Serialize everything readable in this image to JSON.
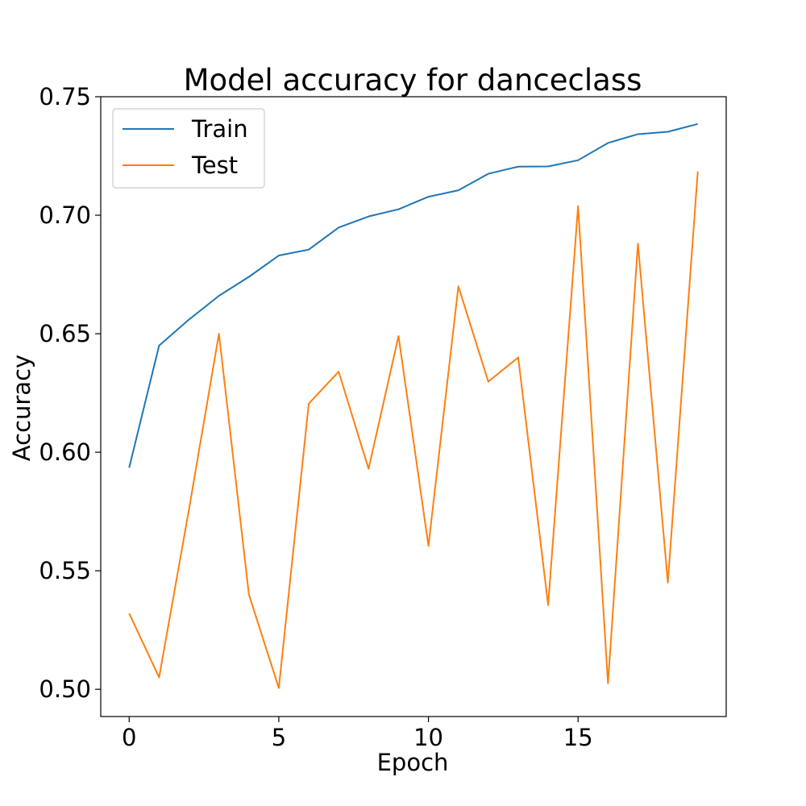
{
  "chart_data": {
    "type": "line",
    "title": "Model accuracy for danceclass",
    "xlabel": "Epoch",
    "ylabel": "Accuracy",
    "x": [
      0,
      1,
      2,
      3,
      4,
      5,
      6,
      7,
      8,
      9,
      10,
      11,
      12,
      13,
      14,
      15,
      16,
      17,
      18,
      19
    ],
    "xlim": [
      -0.95,
      19.95
    ],
    "ylim": [
      0.4885,
      0.75
    ],
    "xticks": [
      0,
      5,
      10,
      15
    ],
    "xtick_labels": [
      "0",
      "5",
      "10",
      "15"
    ],
    "yticks": [
      0.5,
      0.55,
      0.6,
      0.65,
      0.7,
      0.75
    ],
    "ytick_labels": [
      "0.50",
      "0.55",
      "0.60",
      "0.65",
      "0.70",
      "0.75"
    ],
    "grid": false,
    "legend_position": "top-left",
    "series": [
      {
        "name": "Train",
        "color": "#1f77b4",
        "values": [
          0.5935,
          0.645,
          0.656,
          0.666,
          0.674,
          0.683,
          0.6855,
          0.6948,
          0.6995,
          0.7025,
          0.7078,
          0.7105,
          0.7175,
          0.7205,
          0.7206,
          0.7232,
          0.7305,
          0.7342,
          0.7352,
          0.7385
        ]
      },
      {
        "name": "Test",
        "color": "#ff7f0e",
        "values": [
          0.532,
          0.505,
          0.576,
          0.65,
          0.54,
          0.5005,
          0.6205,
          0.634,
          0.593,
          0.649,
          0.5605,
          0.67,
          0.6298,
          0.64,
          0.5355,
          0.7038,
          0.5025,
          0.688,
          0.545,
          0.7185
        ]
      }
    ]
  }
}
